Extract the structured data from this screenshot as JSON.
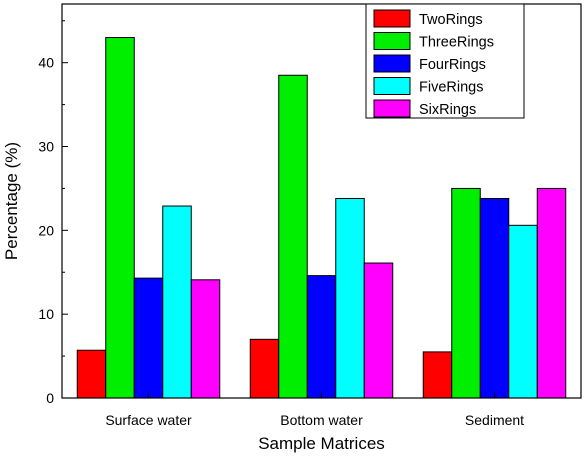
{
  "chart_data": {
    "type": "bar",
    "title": "",
    "xlabel": "Sample Matrices",
    "ylabel": "Percentage (%)",
    "ylim": [
      0,
      47
    ],
    "yticks": [
      0,
      10,
      20,
      30,
      40
    ],
    "categories": [
      "Surface water",
      "Bottom water",
      "Sediment"
    ],
    "series": [
      {
        "name": "TwoRings",
        "color": "#ff0000",
        "values": [
          5.7,
          7.0,
          5.5
        ]
      },
      {
        "name": "ThreeRings",
        "color": "#00ee00",
        "values": [
          43.0,
          38.5,
          25.0
        ]
      },
      {
        "name": "FourRings",
        "color": "#0000ff",
        "values": [
          14.3,
          14.6,
          23.8
        ]
      },
      {
        "name": "FiveRings",
        "color": "#00ffff",
        "values": [
          22.9,
          23.8,
          20.6
        ]
      },
      {
        "name": "SixRings",
        "color": "#ff00ff",
        "values": [
          14.1,
          16.1,
          25.0
        ]
      }
    ],
    "legend_position": "top-right",
    "grid": false
  }
}
